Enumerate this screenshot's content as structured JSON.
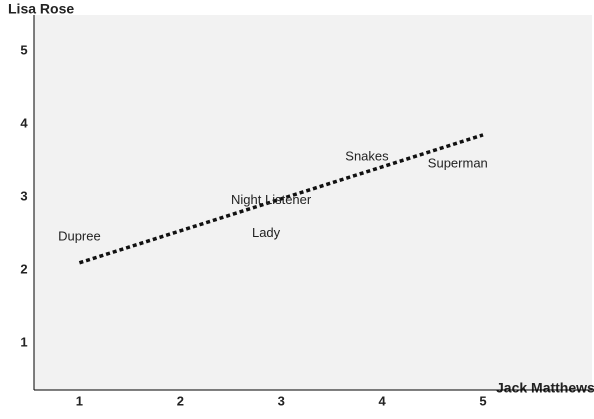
{
  "chart_data": {
    "type": "scatter",
    "y_label": "Lisa Rose",
    "x_label": "Jack Matthews",
    "points": [
      {
        "label": "Dupree",
        "x": 1,
        "y": 2.45
      },
      {
        "label": "Night Listener",
        "x": 2.9,
        "y": 2.95
      },
      {
        "label": "Lady",
        "x": 2.85,
        "y": 2.5
      },
      {
        "label": "Snakes",
        "x": 3.85,
        "y": 3.55
      },
      {
        "label": "Superman",
        "x": 4.75,
        "y": 3.45
      }
    ],
    "trend_x": [
      1,
      5
    ],
    "trend_y": [
      2.1,
      3.85
    ],
    "xlim": [
      0.55,
      6.08
    ],
    "ylim": [
      0.36,
      5.49
    ],
    "xticks": [
      1,
      2,
      3,
      4,
      5
    ],
    "yticks": [
      1,
      2,
      3,
      4,
      5
    ],
    "plot_color": "#f2f2f2",
    "trend_color": "#111111"
  }
}
